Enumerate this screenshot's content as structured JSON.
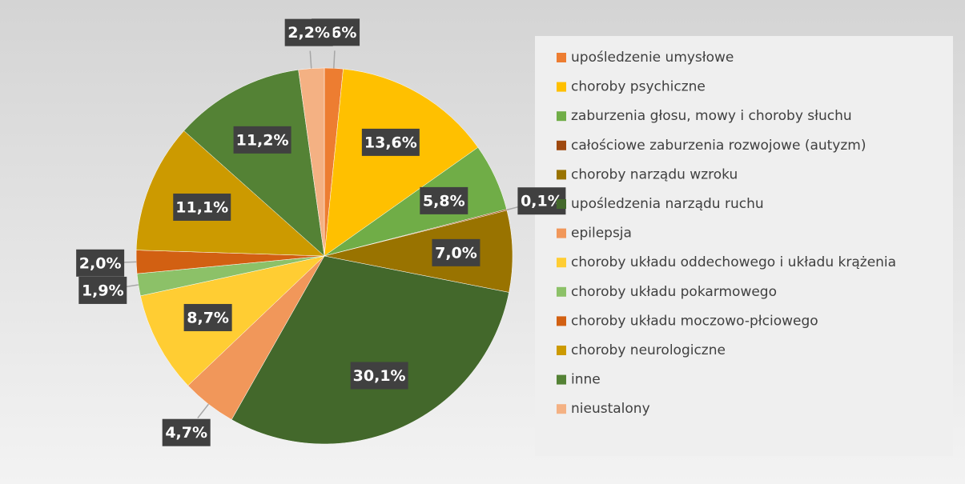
{
  "chart_data": {
    "type": "pie",
    "categories": [
      "upośledzenie umysłowe",
      "choroby psychiczne",
      "zaburzenia głosu, mowy i choroby słuchu",
      "całościowe zaburzenia rozwojowe (autyzm)",
      "choroby narządu wzroku",
      "upośledzenia narządu ruchu",
      "epilepsja",
      "choroby układu oddechowego i układu krążenia",
      "choroby układu pokarmowego",
      "choroby układu moczowo-płciowego",
      "choroby neurologiczne",
      "inne",
      "nieustalony"
    ],
    "values": [
      1.6,
      13.6,
      5.8,
      0.1,
      7.0,
      30.1,
      4.7,
      8.7,
      1.9,
      2.0,
      11.1,
      11.2,
      2.2
    ],
    "value_labels": [
      "1,6%",
      "13,6%",
      "5,8%",
      "0,1%",
      "7,0%",
      "30,1%",
      "4,7%",
      "8,7%",
      "1,9%",
      "2,0%",
      "11,1%",
      "11,2%",
      "2,2%"
    ],
    "colors": [
      "#ED7D31",
      "#FFC000",
      "#70AD47",
      "#9E480E",
      "#997300",
      "#43682B",
      "#F1975A",
      "#FFCD33",
      "#8CC168",
      "#D26012",
      "#CC9A00",
      "#548235",
      "#F4B183"
    ],
    "legend": "right"
  }
}
